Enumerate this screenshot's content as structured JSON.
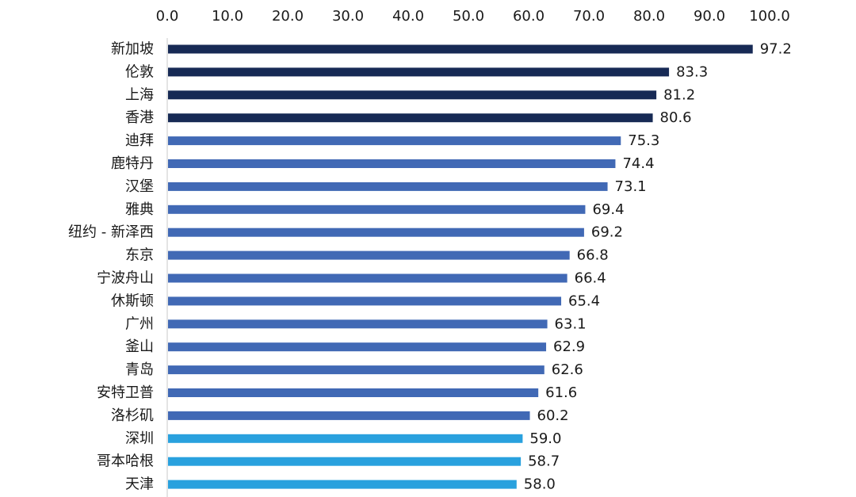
{
  "chart_data": {
    "type": "bar",
    "orientation": "horizontal",
    "title": "",
    "xlabel": "",
    "ylabel": "",
    "xlim": [
      0,
      100
    ],
    "ticks": [
      "0.0",
      "10.0",
      "20.0",
      "30.0",
      "40.0",
      "50.0",
      "60.0",
      "70.0",
      "80.0",
      "90.0",
      "100.0"
    ],
    "tick_values": [
      0,
      10,
      20,
      30,
      40,
      50,
      60,
      70,
      80,
      90,
      100
    ],
    "axis_position": "top",
    "grid": false,
    "categories": [
      "新加坡",
      "伦敦",
      "上海",
      "香港",
      "迪拜",
      "鹿特丹",
      "汉堡",
      "雅典",
      "纽约 - 新泽西",
      "东京",
      "宁波舟山",
      "休斯顿",
      "广州",
      "釜山",
      "青岛",
      "安特卫普",
      "洛杉矶",
      "深圳",
      "哥本哈根",
      "天津"
    ],
    "values": [
      97.2,
      83.3,
      81.2,
      80.6,
      75.3,
      74.4,
      73.1,
      69.4,
      69.2,
      66.8,
      66.4,
      65.4,
      63.1,
      62.9,
      62.6,
      61.6,
      60.2,
      59.0,
      58.7,
      58.0
    ],
    "value_labels": [
      "97.2",
      "83.3",
      "81.2",
      "80.6",
      "75.3",
      "74.4",
      "73.1",
      "69.4",
      "69.2",
      "66.8",
      "66.4",
      "65.4",
      "63.1",
      "62.9",
      "62.6",
      "61.6",
      "60.2",
      "59.0",
      "58.7",
      "58.0"
    ],
    "colors": [
      "#172a55",
      "#172a55",
      "#172a55",
      "#172a55",
      "#4169b5",
      "#4169b5",
      "#4169b5",
      "#4169b5",
      "#4169b5",
      "#4169b5",
      "#4169b5",
      "#4169b5",
      "#4169b5",
      "#4169b5",
      "#4169b5",
      "#4169b5",
      "#4169b5",
      "#29a1de",
      "#29a1de",
      "#29a1de"
    ]
  }
}
